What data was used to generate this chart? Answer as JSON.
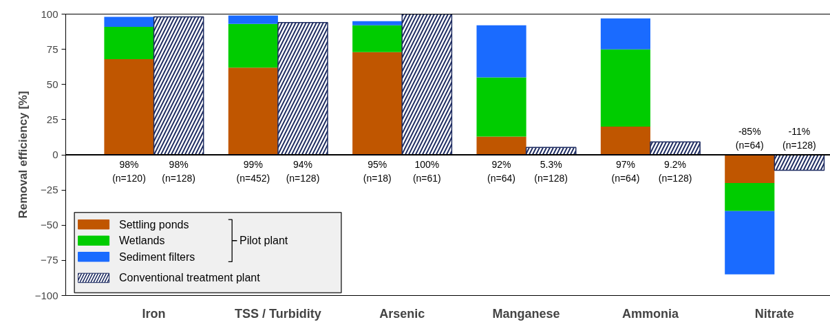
{
  "chart_data": {
    "type": "bar",
    "ylabel": "Removal efficiency [%]",
    "categories": [
      "Iron",
      "TSS / Turbidity",
      "Arsenic",
      "Manganese",
      "Ammonia",
      "Nitrate"
    ],
    "series": [
      {
        "name": "Settling ponds",
        "color": "#c05600",
        "values": [
          68,
          62,
          73,
          13,
          20,
          -20
        ],
        "base": [
          0,
          0,
          0,
          0,
          0,
          0
        ]
      },
      {
        "name": "Wetlands",
        "color": "#00cc00",
        "values": [
          23,
          31,
          19,
          42,
          55,
          -20
        ],
        "base": [
          68,
          62,
          73,
          13,
          20,
          -20
        ]
      },
      {
        "name": "Sediment filters",
        "color": "#1a6bff",
        "values": [
          7,
          6,
          3,
          37,
          22,
          -45
        ],
        "base": [
          91,
          93,
          92,
          55,
          75,
          -40
        ]
      },
      {
        "name": "Conventional treatment plant",
        "color": "#1f2d62",
        "type": "bar",
        "values": [
          98,
          94,
          100,
          5.3,
          9.2,
          -11
        ],
        "value_labels": [
          "98%\n(n=128)",
          "94%\n(n=128)",
          "100%\n(n=61)",
          "5.3%\n(n=128)",
          "9.2%\n(n=128)",
          "-11%\n(n=128)"
        ]
      }
    ],
    "totals": [
      "98%\n(n=120)",
      "99%\n(n=452)",
      "95%\n(n=18)",
      "92%\n(n=64)",
      "97%\n(n=64)",
      "-85%\n(n=64)"
    ],
    "annotations": [
      "Pilot plant"
    ],
    "ref_lines": [
      {
        "axis": "y",
        "value": 0
      }
    ],
    "ylim": [
      -100,
      100
    ],
    "yticks": [
      100,
      75,
      50,
      25,
      0,
      -25,
      -50,
      -75,
      -100
    ],
    "grid": false,
    "legend": "bottom left"
  }
}
